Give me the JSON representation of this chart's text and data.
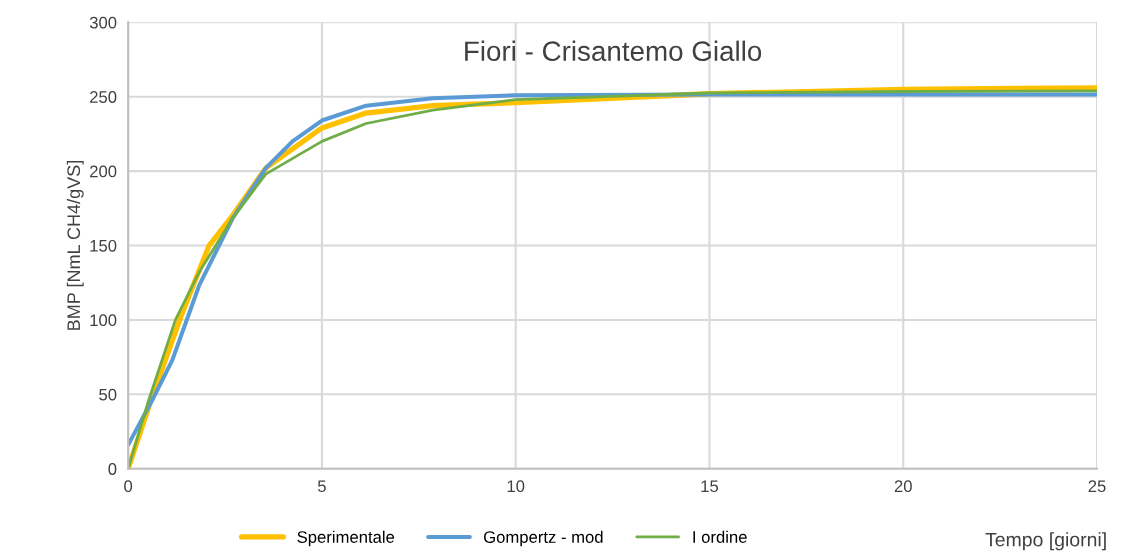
{
  "chart_data": {
    "type": "line",
    "title": "Fiori - Crisantemo Giallo",
    "xlabel": "Tempo [giorni]",
    "ylabel": "BMP [NmL CH4/gVS]",
    "xlim": [
      0,
      25
    ],
    "xticks": [
      0,
      5,
      10,
      15,
      20,
      25
    ],
    "ylim": [
      0,
      300
    ],
    "yticks": [
      0,
      50,
      100,
      150,
      200,
      250,
      300
    ],
    "grid": true,
    "legend": "bottom",
    "marker": "none",
    "line_style": "solid",
    "series": [
      {
        "name": "Sperimentale",
        "color": "#ffc000",
        "x": [
          0,
          0.62,
          1.4,
          2.09,
          2.69,
          3.55,
          5,
          6.14,
          7.86,
          10,
          15,
          20,
          25
        ],
        "values": [
          0,
          48.5,
          105,
          150,
          170,
          202,
          229,
          239,
          244,
          246,
          252,
          255,
          256
        ]
      },
      {
        "name": "Gompertz - mod",
        "color": "#5b9bd5",
        "x": [
          0,
          0.62,
          1.14,
          1.83,
          2.69,
          3.55,
          4.24,
          5,
          6.14,
          7.86,
          10,
          15,
          20,
          25
        ],
        "values": [
          16,
          46,
          73,
          123,
          168,
          202,
          220,
          234,
          244,
          249,
          251,
          251.5,
          251.5,
          251.5
        ]
      },
      {
        "name": "I ordine",
        "color": "#70ad47",
        "x": [
          0,
          0.53,
          1.22,
          1.83,
          2.69,
          3.55,
          5,
          6.14,
          7.86,
          10,
          15,
          20,
          25
        ],
        "values": [
          0,
          46,
          100,
          132,
          168,
          198,
          220,
          232,
          241,
          248,
          252.5,
          253.5,
          254
        ]
      }
    ]
  }
}
